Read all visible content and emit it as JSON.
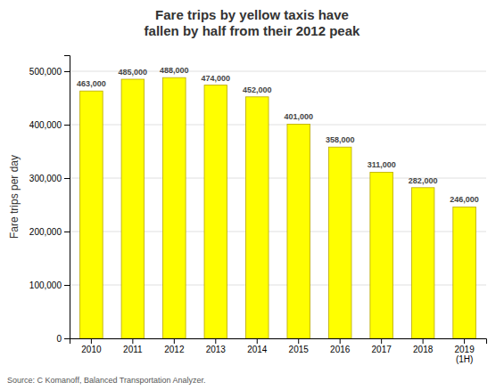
{
  "chart_data": {
    "type": "bar",
    "title": "Fare trips by yellow taxis have\nfallen by half from their 2012 peak",
    "ylabel": "Fare trips per day",
    "annotations": [
      "Source: C Komanoff, Balanced Transportation Analyzer."
    ],
    "categories": [
      "2010",
      "2011",
      "2012",
      "2013",
      "2014",
      "2015",
      "2016",
      "2017",
      "2018",
      "2019\n(1H)"
    ],
    "values": [
      463000,
      485000,
      488000,
      474000,
      452000,
      401000,
      358000,
      311000,
      282000,
      246000
    ],
    "value_labels": [
      "463,000",
      "485,000",
      "488,000",
      "474,000",
      "452,000",
      "401,000",
      "358,000",
      "311,000",
      "282,000",
      "246,000"
    ],
    "color": "#ffff00",
    "ylim": [
      0,
      530000
    ],
    "yticks": [
      0,
      {
        "value": 100000,
        "label": "100,000"
      },
      {
        "value": 200000,
        "label": "200,000"
      },
      {
        "value": 300000,
        "label": "300,000"
      },
      {
        "value": 400000,
        "label": "400,000"
      },
      {
        "value": 500000,
        "label": "500,000"
      }
    ],
    "grid": true,
    "data_labels": true
  }
}
